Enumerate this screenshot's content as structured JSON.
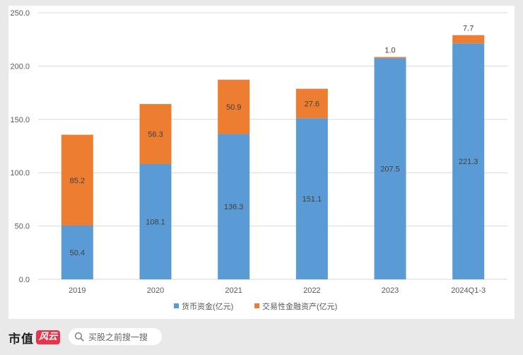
{
  "chart_data": {
    "type": "bar",
    "stacked": true,
    "categories": [
      "2019",
      "2020",
      "2021",
      "2022",
      "2023",
      "2024Q1-3"
    ],
    "series": [
      {
        "name": "货币资金(亿元)",
        "color": "#5b9bd5",
        "values": [
          50.4,
          108.1,
          136.3,
          151.1,
          207.5,
          221.3
        ],
        "labels": [
          "50.4",
          "108.1",
          "136.3",
          "151.1",
          "207.5",
          "221.3"
        ]
      },
      {
        "name": "交易性金融资产(亿元)",
        "color": "#ed7d31",
        "values": [
          85.2,
          56.3,
          50.9,
          27.6,
          1.0,
          7.7
        ],
        "labels": [
          "85.2",
          "56.3",
          "50.9",
          "27.6",
          "1.0",
          "7.7"
        ]
      }
    ],
    "yticks": [
      "0.0",
      "50.0",
      "100.0",
      "150.0",
      "200.0",
      "250.0"
    ],
    "ylim": [
      0,
      250
    ],
    "grid": true,
    "legend": "bottom",
    "title": "",
    "xlabel": "",
    "ylabel": ""
  },
  "footer": {
    "brand": "市值",
    "badge": "风云",
    "search_placeholder": "买股之前搜一搜"
  }
}
